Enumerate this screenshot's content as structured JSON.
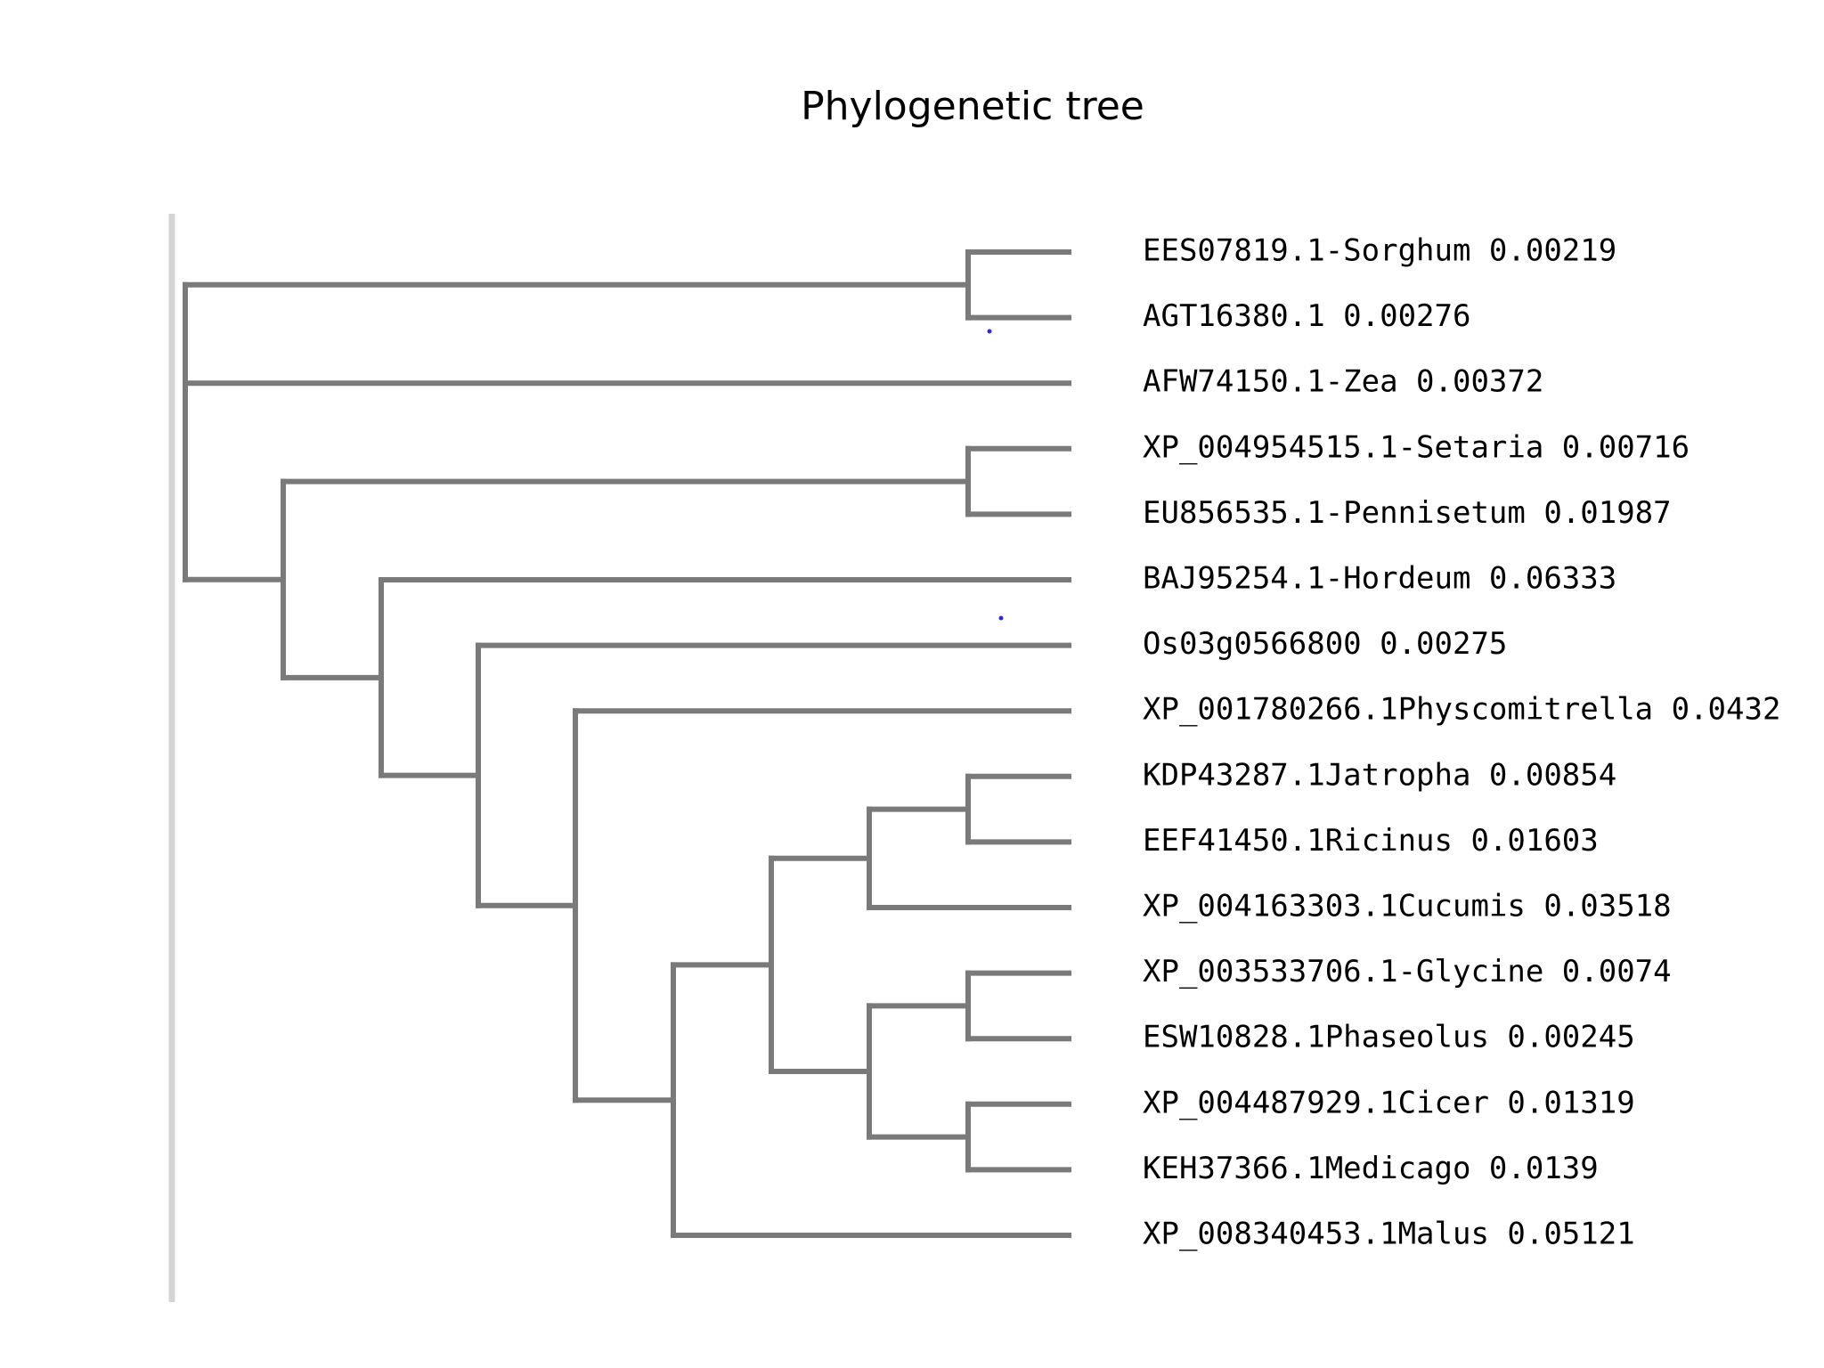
{
  "title": "Phylogenetic tree",
  "colors": {
    "branch": "#7a7a7a",
    "axis": "#d4d4d4",
    "text": "#000000",
    "dot": "#2b2bd6"
  },
  "leaves": [
    {
      "id": "L1",
      "label": "EES07819.1-Sorghum 0.00219"
    },
    {
      "id": "L2",
      "label": "AGT16380.1 0.00276"
    },
    {
      "id": "L3",
      "label": "AFW74150.1-Zea 0.00372"
    },
    {
      "id": "L4",
      "label": "XP_004954515.1-Setaria 0.00716"
    },
    {
      "id": "L5",
      "label": "EU856535.1-Pennisetum 0.01987"
    },
    {
      "id": "L6",
      "label": "BAJ95254.1-Hordeum 0.06333"
    },
    {
      "id": "L7",
      "label": "Os03g0566800 0.00275"
    },
    {
      "id": "L8",
      "label": "XP_001780266.1Physcomitrella 0.0432"
    },
    {
      "id": "L9",
      "label": "KDP43287.1Jatropha 0.00854"
    },
    {
      "id": "L10",
      "label": "EEF41450.1Ricinus 0.01603"
    },
    {
      "id": "L11",
      "label": "XP_004163303.1Cucumis 0.03518"
    },
    {
      "id": "L12",
      "label": "XP_003533706.1-Glycine 0.0074"
    },
    {
      "id": "L13",
      "label": "ESW10828.1Phaseolus 0.00245"
    },
    {
      "id": "L14",
      "label": "XP_004487929.1Cicer 0.01319"
    },
    {
      "id": "L15",
      "label": "KEH37366.1Medicago 0.0139"
    },
    {
      "id": "L16",
      "label": "XP_008340453.1Malus 0.05121"
    }
  ],
  "tree": {
    "id": "root",
    "children": [
      {
        "id": "n_sorghum_agt",
        "children": [
          {
            "leaf": "L1"
          },
          {
            "leaf": "L2"
          }
        ]
      },
      {
        "leaf": "L3"
      },
      {
        "id": "n_a",
        "children": [
          {
            "id": "n_setaria_pennisetum",
            "children": [
              {
                "leaf": "L4"
              },
              {
                "leaf": "L5"
              }
            ]
          },
          {
            "id": "n_b",
            "children": [
              {
                "leaf": "L6"
              },
              {
                "id": "n_c",
                "children": [
                  {
                    "leaf": "L7"
                  },
                  {
                    "id": "n_d",
                    "children": [
                      {
                        "leaf": "L8"
                      },
                      {
                        "id": "n_e",
                        "children": [
                          {
                            "id": "n_f",
                            "children": [
                              {
                                "id": "n_g",
                                "children": [
                                  {
                                    "id": "n_jatropha_ricinus",
                                    "children": [
                                      {
                                        "leaf": "L9"
                                      },
                                      {
                                        "leaf": "L10"
                                      }
                                    ]
                                  },
                                  {
                                    "leaf": "L11"
                                  }
                                ]
                              },
                              {
                                "id": "n_h",
                                "children": [
                                  {
                                    "id": "n_glycine_phaseolus",
                                    "children": [
                                      {
                                        "leaf": "L12"
                                      },
                                      {
                                        "leaf": "L13"
                                      }
                                    ]
                                  },
                                  {
                                    "id": "n_cicer_medicago",
                                    "children": [
                                      {
                                        "leaf": "L14"
                                      },
                                      {
                                        "leaf": "L15"
                                      }
                                    ]
                                  }
                                ]
                              }
                            ]
                          },
                          {
                            "leaf": "L16"
                          }
                        ]
                      }
                    ]
                  }
                ]
              }
            ]
          }
        ]
      }
    ]
  }
}
